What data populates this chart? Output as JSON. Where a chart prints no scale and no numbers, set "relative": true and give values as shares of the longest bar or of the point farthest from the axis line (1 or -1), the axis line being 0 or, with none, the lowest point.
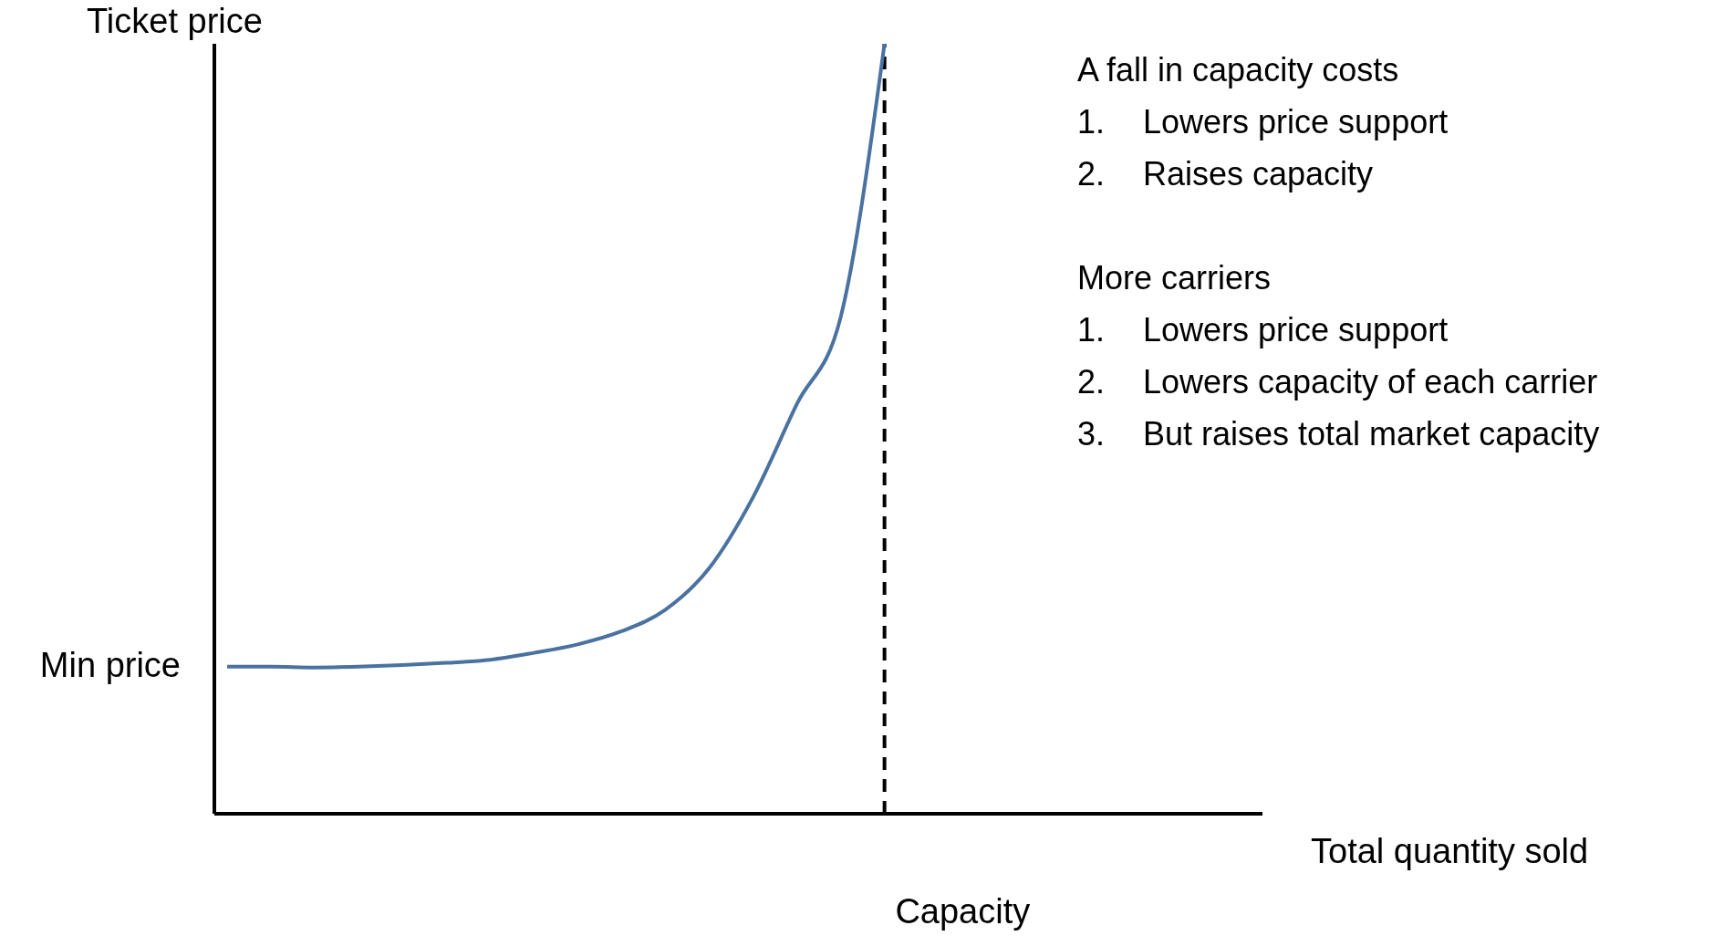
{
  "chart_data": {
    "type": "line",
    "relative": true,
    "ylabel": "Ticket price",
    "xlabel": "Total quantity sold",
    "categories": [
      null,
      null,
      null,
      null,
      null,
      null,
      null,
      null,
      null,
      null,
      null,
      null,
      null,
      null,
      null,
      null,
      null,
      null,
      null,
      null,
      null,
      null,
      null,
      null
    ],
    "series": [
      {
        "color": "#4a72a0",
        "values": [
          0.191,
          0.191,
          0.19,
          0.191,
          0.193,
          0.196,
          0.2,
          0.209,
          0.22,
          0.237,
          0.265,
          0.319,
          0.411,
          0.532,
          0.645,
          1,
          null,
          null,
          null,
          null,
          null,
          null,
          null,
          null
        ]
      }
    ],
    "annotations": [
      "Min price",
      "Capacity",
      "A fall in capacity costs\n1.\tLowers price support\n2.\tRaises capacity",
      "More carriers\n1.\tLowers price support\n2.\tLowers capacity of each carrier\n3.\tBut raises total market capacity"
    ]
  }
}
